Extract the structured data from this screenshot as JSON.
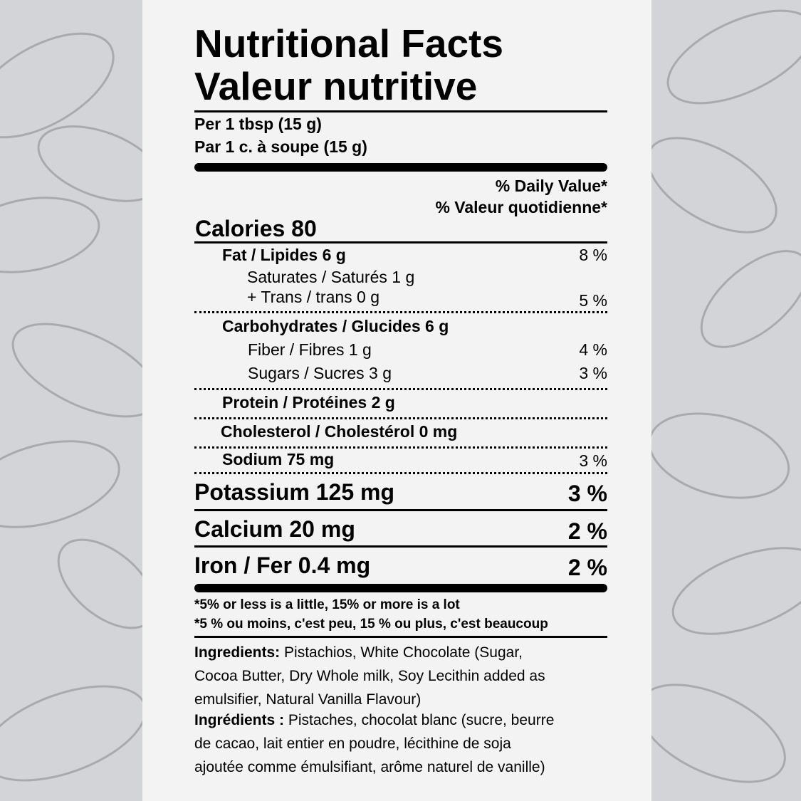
{
  "title_en": "Nutritional Facts",
  "title_fr": "Valeur nutritive",
  "serving_en": "Per 1 tbsp (15 g)",
  "serving_fr": "Par 1 c. à soupe (15 g)",
  "dv_en": "% Daily Value*",
  "dv_fr": "% Valeur quotidienne*",
  "calories": "Calories 80",
  "nutrients": {
    "fat": {
      "label": "Fat / Lipides 6 g",
      "dv": "8 %"
    },
    "saturates": {
      "label": "Saturates / Saturés 1 g"
    },
    "trans": {
      "label": "+ Trans / trans 0 g",
      "dv": "5 %"
    },
    "carbs": {
      "label": "Carbohydrates / Glucides 6 g"
    },
    "fiber": {
      "label": "Fiber / Fibres 1 g",
      "dv": "4 %"
    },
    "sugars": {
      "label": "Sugars / Sucres 3 g",
      "dv": "3 %"
    },
    "protein": {
      "label": "Protein / Protéines 2 g"
    },
    "cholesterol": {
      "label": "Cholesterol / Cholestérol 0 mg"
    },
    "sodium": {
      "label": "Sodium 75 mg",
      "dv": "3 %"
    },
    "potassium": {
      "label": "Potassium 125 mg",
      "dv": "3 %"
    },
    "calcium": {
      "label": "Calcium 20 mg",
      "dv": "2 %"
    },
    "iron": {
      "label": "Iron / Fer 0.4 mg",
      "dv": "2 %"
    }
  },
  "footnote_en": "*5% or less is a little, 15% or more is a lot",
  "footnote_fr": "*5 % ou moins, c'est peu, 15 % ou plus, c'est beaucoup",
  "ingredients_en": {
    "label": "Ingredients:",
    "lines": [
      " Pistachios, White Chocolate (Sugar,",
      "Cocoa Butter, Dry Whole milk, Soy Lecithin added as",
      "emulsifier, Natural Vanilla Flavour)"
    ]
  },
  "ingredients_fr": {
    "label": "Ingrédients :",
    "lines": [
      " Pistaches, chocolat blanc (sucre, beurre",
      "de cacao, lait entier en poudre, lécithine de soja",
      "ajoutée comme émulsifiant, arôme naturel de vanille)"
    ]
  },
  "colors": {
    "background": "#d3d4d8",
    "panel": "#f3f3f3",
    "sketch": "#a9aaae"
  }
}
